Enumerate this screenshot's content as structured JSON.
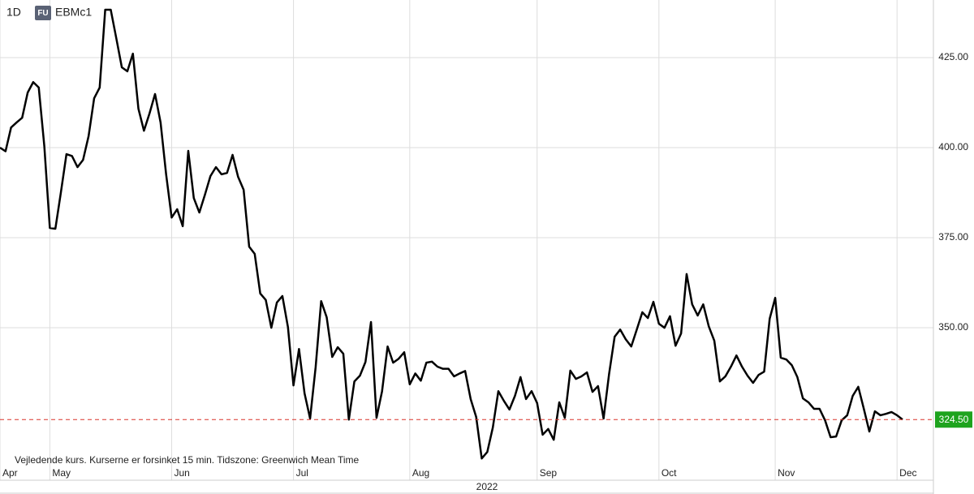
{
  "chart_data": {
    "type": "line",
    "interval": "1D",
    "badge": "FU",
    "symbol": "EBMc1",
    "note": "Vejledende kurs. Kurserne er forsinket 15 min.    Tidszone: Greenwich Mean Time",
    "year": "2022",
    "categories": [
      "Apr",
      null,
      null,
      null,
      null,
      null,
      null,
      null,
      null,
      "May",
      null,
      null,
      null,
      null,
      null,
      null,
      null,
      null,
      null,
      null,
      null,
      null,
      null,
      null,
      null,
      null,
      null,
      null,
      null,
      null,
      null,
      "Jun",
      null,
      null,
      null,
      null,
      null,
      null,
      null,
      null,
      null,
      null,
      null,
      null,
      null,
      null,
      null,
      null,
      null,
      null,
      null,
      null,
      null,
      "Jul",
      null,
      null,
      null,
      null,
      null,
      null,
      null,
      null,
      null,
      null,
      null,
      null,
      null,
      null,
      null,
      null,
      null,
      null,
      null,
      null,
      "Aug",
      null,
      null,
      null,
      null,
      null,
      null,
      null,
      null,
      null,
      null,
      null,
      null,
      null,
      null,
      null,
      null,
      null,
      null,
      null,
      null,
      null,
      null,
      "Sep",
      null,
      null,
      null,
      null,
      null,
      null,
      null,
      null,
      null,
      null,
      null,
      null,
      null,
      null,
      null,
      null,
      null,
      null,
      null,
      null,
      null,
      "Oct",
      null,
      null,
      null,
      null,
      null,
      null,
      null,
      null,
      null,
      null,
      null,
      null,
      null,
      null,
      null,
      null,
      null,
      null,
      null,
      null,
      "Nov",
      null,
      null,
      null,
      null,
      null,
      null,
      null,
      null,
      null,
      null,
      null,
      null,
      null,
      null,
      null,
      null,
      null,
      null,
      null,
      null,
      null,
      "Dec",
      null
    ],
    "series": [
      {
        "name": "EBMc1",
        "color": "#000000",
        "values": [
          400,
          399,
          405.6,
          407,
          408.3,
          415.3,
          418.2,
          416.7,
          400.5,
          377.7,
          377.5,
          387.6,
          398.2,
          397.7,
          394.6,
          396.6,
          403.2,
          413.7,
          416.7,
          438.3,
          438.3,
          430.4,
          422.3,
          421.2,
          426.1,
          410.8,
          404.7,
          409.5,
          414.9,
          407,
          392.6,
          380.6,
          382.9,
          378.2,
          399.1,
          386,
          382,
          386.9,
          392.1,
          394.6,
          392.6,
          393,
          398,
          391.9,
          388.3,
          372.5,
          370.5,
          359.5,
          357.7,
          350,
          357,
          358.8,
          350.2,
          334,
          344.1,
          331.8,
          324.8,
          339,
          357.4,
          352.9,
          341.9,
          344.6,
          342.8,
          324.5,
          335.1,
          336.7,
          340.5,
          351.6,
          325,
          332.4,
          344.8,
          340.3,
          341.4,
          343.2,
          334.3,
          337.3,
          335.3,
          340.3,
          340.6,
          339.2,
          338.6,
          338.6,
          336.5,
          337.3,
          338,
          330.2,
          325.2,
          313.7,
          315.5,
          322.3,
          332.4,
          329.7,
          327.3,
          331.1,
          336.3,
          330.2,
          332.4,
          329.1,
          320.3,
          321.9,
          318.9,
          329.3,
          325,
          338.1,
          335.8,
          336.5,
          337.6,
          332.2,
          333.8,
          324.8,
          337.2,
          347.5,
          349.5,
          346.8,
          344.8,
          349.5,
          354.3,
          352.7,
          357.2,
          351.1,
          350,
          353.2,
          345,
          348.4,
          364.9,
          356.5,
          353.4,
          356.5,
          350.4,
          346.4,
          335.1,
          336.5,
          339.2,
          342.3,
          339.2,
          336.7,
          334.7,
          336.9,
          337.8,
          352.5,
          358.3,
          341.7,
          341.2,
          339.6,
          336.3,
          330.4,
          329.3,
          327.5,
          327.5,
          324.3,
          319.6,
          319.8,
          324.3,
          325.7,
          331.1,
          333.6,
          327.5,
          321.2,
          326.8,
          325.7,
          326.1,
          326.6,
          325.7,
          324.5
        ]
      }
    ],
    "last_value": {
      "value": 324.5,
      "label": "324.50",
      "line_color": "#d9342b",
      "box_color": "#1ea31e"
    },
    "ylim": [
      311.5,
      441
    ],
    "yticks": [
      {
        "value": 350,
        "label": "350.00"
      },
      {
        "value": 375,
        "label": "375.00"
      },
      {
        "value": 400,
        "label": "400.00"
      },
      {
        "value": 425,
        "label": "425.00"
      }
    ],
    "grid": true
  }
}
